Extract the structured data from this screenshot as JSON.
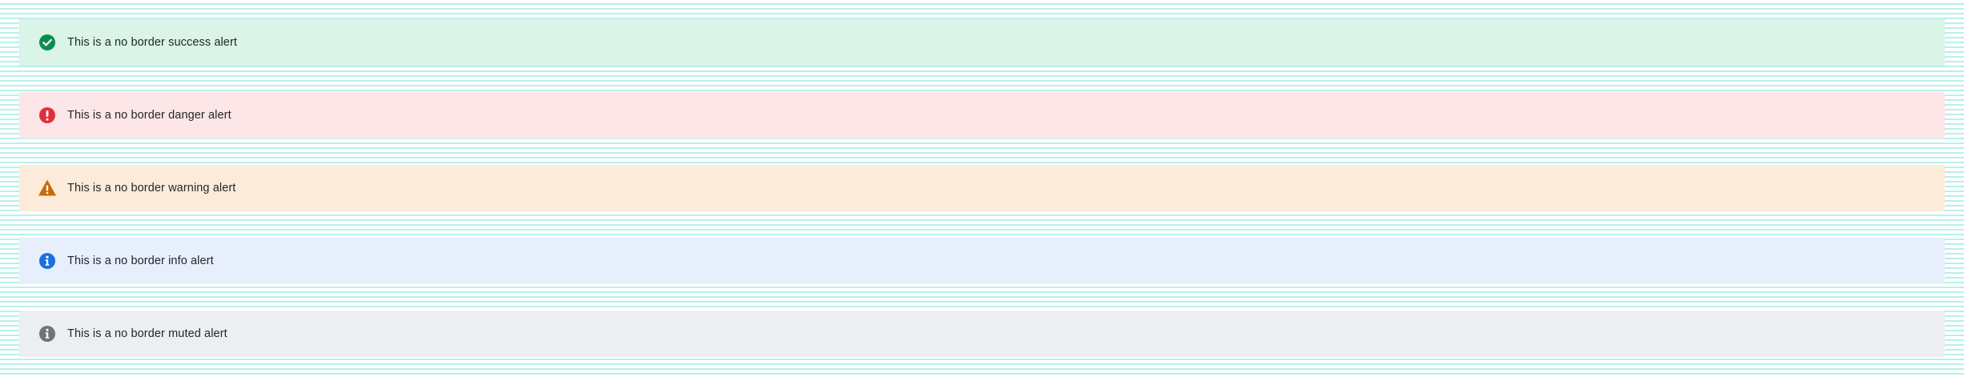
{
  "alerts": [
    {
      "variant": "success",
      "icon": "check-circle-icon",
      "color": "#0a8f4e",
      "background": "#daf4e8",
      "text": "This is a no border success alert"
    },
    {
      "variant": "danger",
      "icon": "exclamation-circle-icon",
      "color": "#e0303d",
      "background": "#fde6e7",
      "text": "This is a no border danger alert"
    },
    {
      "variant": "warning",
      "icon": "warning-triangle-icon",
      "color": "#c76b0a",
      "background": "#fcebd8",
      "text": "This is a no border warning alert"
    },
    {
      "variant": "info",
      "icon": "info-circle-icon",
      "color": "#1c6fe0",
      "background": "#e7effd",
      "text": "This is a no border info alert"
    },
    {
      "variant": "muted",
      "icon": "info-circle-icon",
      "color": "#707478",
      "background": "#eceef0",
      "text": "This is a no border muted alert"
    }
  ]
}
